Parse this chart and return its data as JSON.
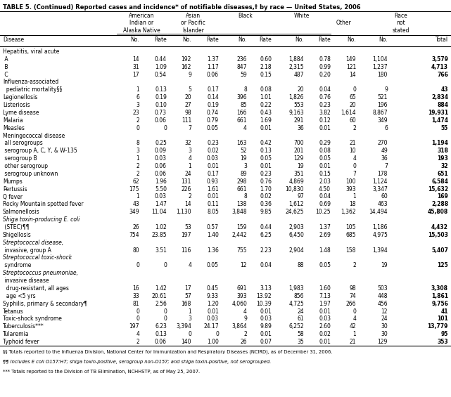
{
  "title": "TABLE 5. (Continued) Reported cases and incidence* of notifiable diseases,† by race — United States, 2006",
  "rows": [
    [
      "Hepatitis, viral acute",
      "",
      "",
      "",
      "",
      "",
      "",
      "",
      "",
      "",
      "",
      ""
    ],
    [
      " A",
      "14",
      "0.44",
      "192",
      "1.37",
      "236",
      "0.60",
      "1,884",
      "0.78",
      "149",
      "1,104",
      "3,579"
    ],
    [
      " B",
      "31",
      "1.09",
      "162",
      "1.17",
      "847",
      "2.18",
      "2,315",
      "0.99",
      "121",
      "1,237",
      "4,713"
    ],
    [
      " C",
      "17",
      "0.54",
      "9",
      "0.06",
      "59",
      "0.15",
      "487",
      "0.20",
      "14",
      "180",
      "766"
    ],
    [
      "Influenza-associated",
      "",
      "",
      "",
      "",
      "",
      "",
      "",
      "",
      "",
      "",
      ""
    ],
    [
      "  pediatric mortality§§",
      "1",
      "0.13",
      "5",
      "0.17",
      "8",
      "0.08",
      "20",
      "0.04",
      "0",
      "9",
      "43"
    ],
    [
      "Legionellosis",
      "6",
      "0.19",
      "20",
      "0.14",
      "396",
      "1.01",
      "1,826",
      "0.76",
      "65",
      "521",
      "2,834"
    ],
    [
      "Listeriosis",
      "3",
      "0.10",
      "27",
      "0.19",
      "85",
      "0.22",
      "553",
      "0.23",
      "20",
      "196",
      "884"
    ],
    [
      "Lyme disease",
      "23",
      "0.73",
      "98",
      "0.74",
      "166",
      "0.43",
      "9,163",
      "3.82",
      "1,614",
      "8,867",
      "19,931"
    ],
    [
      "Malaria",
      "2",
      "0.06",
      "111",
      "0.79",
      "661",
      "1.69",
      "291",
      "0.12",
      "60",
      "349",
      "1,474"
    ],
    [
      "Measles",
      "0",
      "0",
      "7",
      "0.05",
      "4",
      "0.01",
      "36",
      "0.01",
      "2",
      "6",
      "55"
    ],
    [
      "Meningococcal disease",
      "",
      "",
      "",
      "",
      "",
      "",
      "",
      "",
      "",
      "",
      ""
    ],
    [
      " all serogroups",
      "8",
      "0.25",
      "32",
      "0.23",
      "163",
      "0.42",
      "700",
      "0.29",
      "21",
      "270",
      "1,194"
    ],
    [
      " serogroup A, C, Y, & W-135",
      "3",
      "0.09",
      "3",
      "0.02",
      "52",
      "0.13",
      "201",
      "0.08",
      "10",
      "49",
      "318"
    ],
    [
      " serogroup B",
      "1",
      "0.03",
      "4",
      "0.03",
      "19",
      "0.05",
      "129",
      "0.05",
      "4",
      "36",
      "193"
    ],
    [
      " other serogroup",
      "2",
      "0.06",
      "1",
      "0.01",
      "3",
      "0.01",
      "19",
      "0.01",
      "0",
      "7",
      "32"
    ],
    [
      " serogroup unknown",
      "2",
      "0.06",
      "24",
      "0.17",
      "89",
      "0.23",
      "351",
      "0.15",
      "7",
      "178",
      "651"
    ],
    [
      "Mumps",
      "62",
      "1.96",
      "131",
      "0.93",
      "298",
      "0.76",
      "4,869",
      "2.03",
      "100",
      "1,124",
      "6,584"
    ],
    [
      "Pertussis",
      "175",
      "5.50",
      "226",
      "1.61",
      "661",
      "1.70",
      "10,830",
      "4.50",
      "393",
      "3,347",
      "15,632"
    ],
    [
      "Q fever",
      "1",
      "0.03",
      "2",
      "0.01",
      "8",
      "0.02",
      "97",
      "0.04",
      "1",
      "60",
      "169"
    ],
    [
      "Rocky Mountain spotted fever",
      "43",
      "1.47",
      "14",
      "0.11",
      "138",
      "0.36",
      "1,612",
      "0.69",
      "18",
      "463",
      "2,288"
    ],
    [
      "Salmonellosis",
      "349",
      "11.04",
      "1,130",
      "8.05",
      "3,848",
      "9.85",
      "24,625",
      "10.25",
      "1,362",
      "14,494",
      "45,808"
    ],
    [
      "Shiga toxin-producing E. coli",
      "",
      "",
      "",
      "",
      "",
      "",
      "",
      "",
      "",
      "",
      ""
    ],
    [
      " (STEC)¶¶",
      "26",
      "1.02",
      "53",
      "0.57",
      "159",
      "0.44",
      "2,903",
      "1.37",
      "105",
      "1,186",
      "4,432"
    ],
    [
      "Shigellosis",
      "754",
      "23.85",
      "197",
      "1.40",
      "2,442",
      "6.25",
      "6,450",
      "2.69",
      "685",
      "4,975",
      "15,503"
    ],
    [
      "Streptococcal disease,",
      "",
      "",
      "",
      "",
      "",
      "",
      "",
      "",
      "",
      "",
      ""
    ],
    [
      " invasive, group A",
      "80",
      "3.51",
      "116",
      "1.36",
      "755",
      "2.23",
      "2,904",
      "1.48",
      "158",
      "1,394",
      "5,407"
    ],
    [
      "Streptococcal toxic-shock",
      "",
      "",
      "",
      "",
      "",
      "",
      "",
      "",
      "",
      "",
      ""
    ],
    [
      " syndrome",
      "0",
      "0",
      "4",
      "0.05",
      "12",
      "0.04",
      "88",
      "0.05",
      "2",
      "19",
      "125"
    ],
    [
      "Streptococcus pneumoniae,",
      "",
      "",
      "",
      "",
      "",
      "",
      "",
      "",
      "",
      "",
      ""
    ],
    [
      " invasive disease",
      "",
      "",
      "",
      "",
      "",
      "",
      "",
      "",
      "",
      "",
      ""
    ],
    [
      "  drug-resistant, all ages",
      "16",
      "1.42",
      "17",
      "0.45",
      "691",
      "3.13",
      "1,983",
      "1.60",
      "98",
      "503",
      "3,308"
    ],
    [
      "  age <5 yrs",
      "33",
      "20.61",
      "57",
      "9.33",
      "393",
      "13.92",
      "856",
      "7.13",
      "74",
      "448",
      "1,861"
    ],
    [
      "Syphilis, primary & secondary¶",
      "81",
      "2.56",
      "168",
      "1.20",
      "4,060",
      "10.39",
      "4,725",
      "1.97",
      "266",
      "456",
      "9,756"
    ],
    [
      "Tetanus",
      "0",
      "0",
      "1",
      "0.01",
      "4",
      "0.01",
      "24",
      "0.01",
      "0",
      "12",
      "41"
    ],
    [
      "Toxic-shock syndrome",
      "0",
      "0",
      "3",
      "0.03",
      "9",
      "0.03",
      "61",
      "0.03",
      "4",
      "24",
      "101"
    ],
    [
      "Tuberculosis***",
      "197",
      "6.23",
      "3,394",
      "24.17",
      "3,864",
      "9.89",
      "6,252",
      "2.60",
      "42",
      "30",
      "13,779"
    ],
    [
      "Tularemia",
      "4",
      "0.13",
      "0",
      "0",
      "2",
      "0.01",
      "58",
      "0.02",
      "1",
      "30",
      "95"
    ],
    [
      "Typhoid fever",
      "2",
      "0.06",
      "140",
      "1.00",
      "26",
      "0.07",
      "35",
      "0.01",
      "21",
      "129",
      "353"
    ]
  ],
  "footnotes": [
    "§§ Totals reported to the Influenza Division, National Center for Immunization and Respiratory Diseases (NCIRD), as of December 31, 2006.",
    "¶¶ Includes E coli O157:H7; shiga toxin-positive, serogroup non-O157; and shiga toxin-positive, not serogrouped.",
    "*** Totals reported to the Division of TB Elimination, NCHHSTP, as of May 25, 2007."
  ],
  "bold_totals": [
    "3,579",
    "4,713",
    "766",
    "43",
    "2,834",
    "884",
    "19,931",
    "1,474",
    "55",
    "1,194",
    "318",
    "193",
    "32",
    "651",
    "6,584",
    "15,632",
    "169",
    "2,288",
    "45,808",
    "4,432",
    "15,503",
    "5,407",
    "125",
    "3,308",
    "1,861",
    "9,756",
    "41",
    "101",
    "13,779",
    "95",
    "353"
  ],
  "italic_disease_rows": [
    "Shiga toxin-producing E. coli",
    "Streptococcal disease,",
    "Streptococcal toxic-shock",
    "Streptococcus pneumoniae,"
  ]
}
